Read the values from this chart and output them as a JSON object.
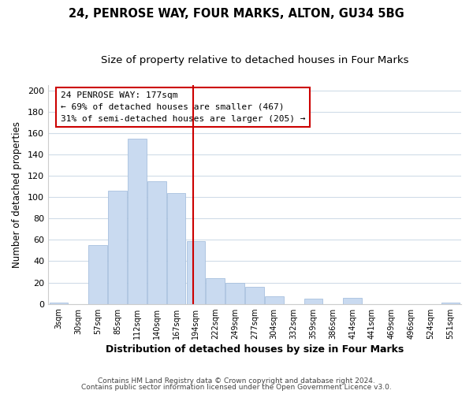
{
  "title": "24, PENROSE WAY, FOUR MARKS, ALTON, GU34 5BG",
  "subtitle": "Size of property relative to detached houses in Four Marks",
  "xlabel": "Distribution of detached houses by size in Four Marks",
  "ylabel": "Number of detached properties",
  "bin_labels": [
    "3sqm",
    "30sqm",
    "57sqm",
    "85sqm",
    "112sqm",
    "140sqm",
    "167sqm",
    "194sqm",
    "222sqm",
    "249sqm",
    "277sqm",
    "304sqm",
    "332sqm",
    "359sqm",
    "386sqm",
    "414sqm",
    "441sqm",
    "469sqm",
    "496sqm",
    "524sqm",
    "551sqm"
  ],
  "bar_heights": [
    1,
    0,
    55,
    106,
    155,
    115,
    104,
    59,
    24,
    20,
    16,
    7,
    0,
    5,
    0,
    6,
    0,
    0,
    0,
    0,
    1
  ],
  "bar_color": "#c9daf0",
  "bar_edge_color": "#a8c0de",
  "vline_color": "#cc0000",
  "annotation_box_text": "24 PENROSE WAY: 177sqm\n← 69% of detached houses are smaller (467)\n31% of semi-detached houses are larger (205) →",
  "annotation_box_edge_color": "#cc0000",
  "ylim": [
    0,
    205
  ],
  "yticks": [
    0,
    20,
    40,
    60,
    80,
    100,
    120,
    140,
    160,
    180,
    200
  ],
  "grid_color": "#d0dce8",
  "footer1": "Contains HM Land Registry data © Crown copyright and database right 2024.",
  "footer2": "Contains public sector information licensed under the Open Government Licence v3.0.",
  "bg_color": "#ffffff",
  "title_fontsize": 10.5,
  "subtitle_fontsize": 9.5,
  "xlabel_fontsize": 9,
  "ylabel_fontsize": 8.5
}
